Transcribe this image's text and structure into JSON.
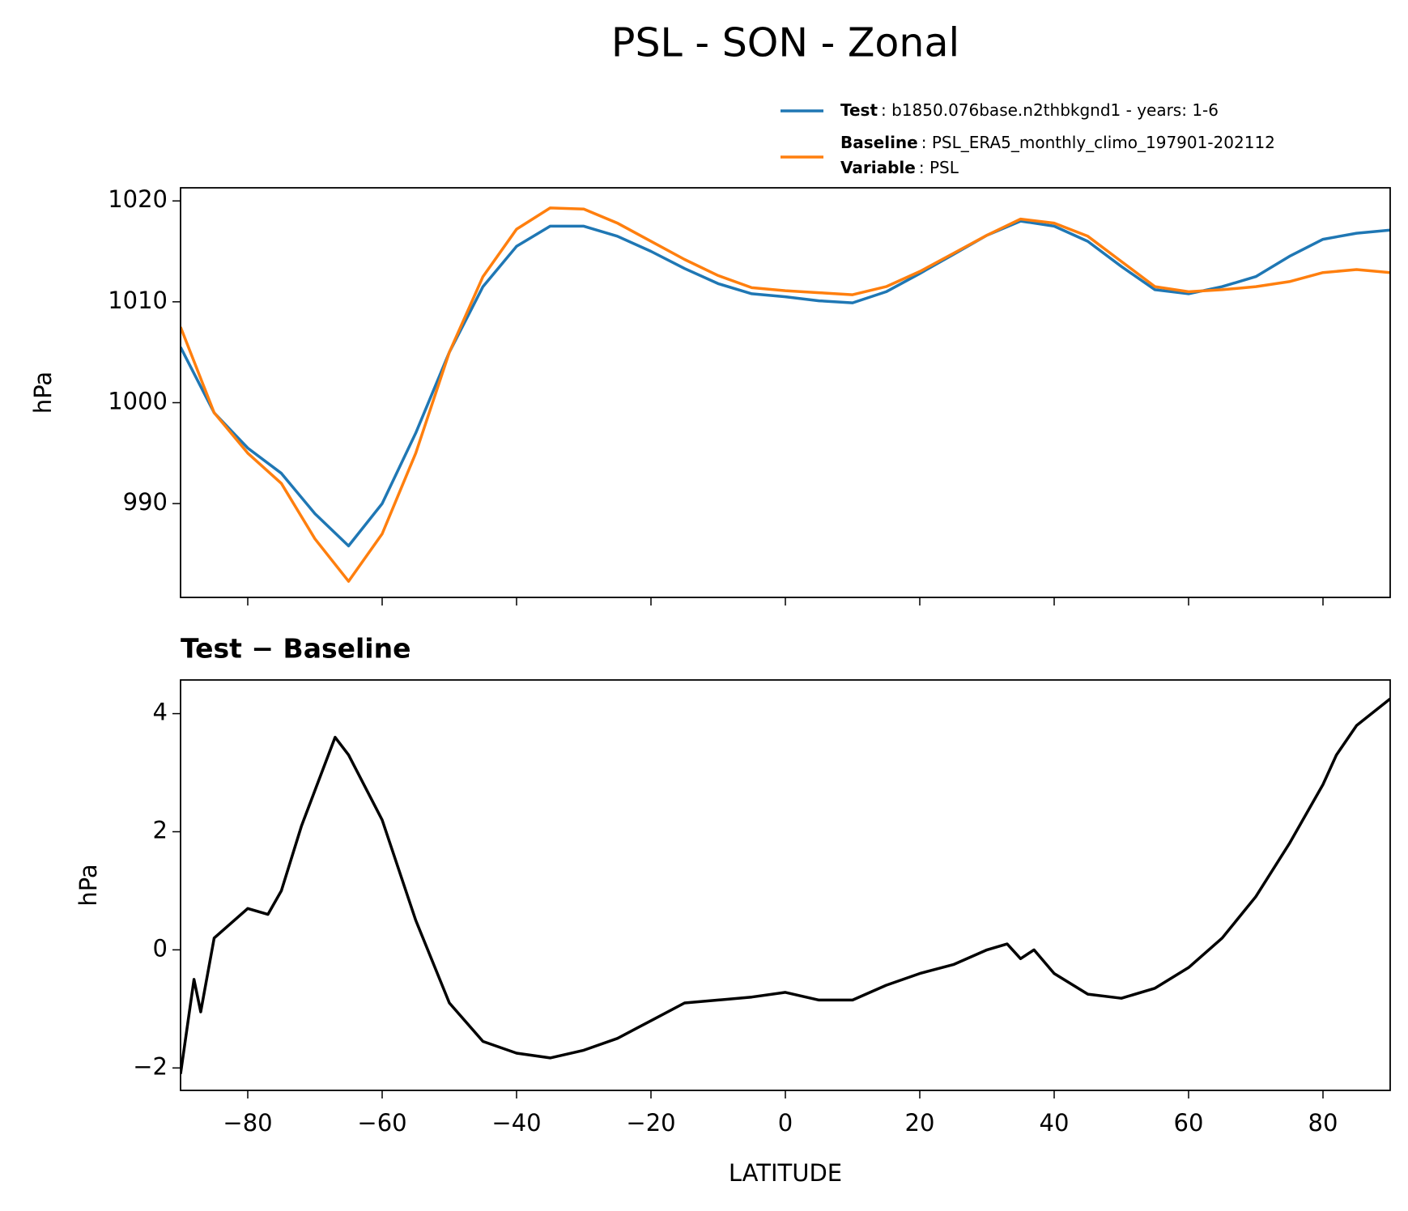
{
  "chart_data": [
    {
      "type": "line",
      "title": "PSL - SON - Zonal",
      "ylabel": "hPa",
      "x": [
        -90,
        -85,
        -80,
        -75,
        -70,
        -65,
        -60,
        -55,
        -50,
        -45,
        -40,
        -35,
        -30,
        -25,
        -20,
        -15,
        -10,
        -5,
        0,
        5,
        10,
        15,
        20,
        25,
        30,
        35,
        40,
        45,
        50,
        55,
        60,
        65,
        70,
        75,
        80,
        85,
        90
      ],
      "series": [
        {
          "name": "Test",
          "description": ": b1850.076base.n2thbkgnd1 - years: 1-6",
          "color": "#1f77b4",
          "values": [
            1005.5,
            999,
            995.5,
            993,
            989,
            985.8,
            990,
            997,
            1005,
            1011.5,
            1015.5,
            1017.5,
            1017.5,
            1016.5,
            1015,
            1013.3,
            1011.8,
            1010.8,
            1010.5,
            1010.1,
            1009.9,
            1011,
            1012.8,
            1014.7,
            1016.6,
            1018,
            1017.5,
            1016,
            1013.5,
            1011.2,
            1010.8,
            1011.5,
            1012.5,
            1014.5,
            1016.2,
            1016.8,
            1017.1
          ]
        },
        {
          "name": "Baseline",
          "description": ": PSL_ERA5_monthly_climo_197901-202112",
          "color": "#ff7f0e",
          "values": [
            1007.5,
            999,
            995,
            992,
            986.5,
            982.3,
            987,
            995,
            1005,
            1012.5,
            1017.2,
            1019.3,
            1019.2,
            1017.8,
            1016,
            1014.2,
            1012.6,
            1011.4,
            1011.1,
            1010.9,
            1010.7,
            1011.5,
            1013,
            1014.8,
            1016.6,
            1018.2,
            1017.8,
            1016.5,
            1014,
            1011.5,
            1011,
            1011.2,
            1011.5,
            1012,
            1012.9,
            1013.2,
            1012.9
          ]
        }
      ],
      "legend_note": {
        "name": "Variable",
        "description": ": PSL"
      },
      "xlim": [
        -90,
        90
      ],
      "xticks": [
        {
          "value": -80,
          "label": "−80"
        },
        {
          "value": -60,
          "label": "−60"
        },
        {
          "value": -40,
          "label": "−40"
        },
        {
          "value": -20,
          "label": "−20"
        },
        0,
        20,
        40,
        60,
        80
      ],
      "show_xtick_labels": false,
      "ylim": [
        980.7,
        1021.3
      ],
      "yticks": [
        990,
        1000,
        1010,
        1020
      ]
    },
    {
      "type": "line",
      "title": "Test − Baseline",
      "ylabel": "hPa",
      "xlabel": "LATITUDE",
      "color": "#000000",
      "x": [
        -90,
        -88,
        -87,
        -85,
        -80,
        -77,
        -75,
        -72,
        -70,
        -67,
        -65,
        -60,
        -55,
        -50,
        -45,
        -40,
        -35,
        -30,
        -25,
        -20,
        -15,
        -10,
        -5,
        0,
        5,
        10,
        15,
        20,
        25,
        30,
        33,
        35,
        37,
        40,
        45,
        50,
        55,
        60,
        65,
        70,
        75,
        80,
        82,
        85,
        90
      ],
      "values": [
        -2.1,
        -0.5,
        -1.05,
        0.2,
        0.7,
        0.6,
        1.0,
        2.1,
        2.7,
        3.6,
        3.3,
        2.2,
        0.5,
        -0.9,
        -1.55,
        -1.75,
        -1.83,
        -1.7,
        -1.5,
        -1.2,
        -0.9,
        -0.85,
        -0.8,
        -0.72,
        -0.85,
        -0.85,
        -0.6,
        -0.4,
        -0.25,
        0.0,
        0.1,
        -0.15,
        0.0,
        -0.4,
        -0.75,
        -0.82,
        -0.65,
        -0.3,
        0.2,
        0.9,
        1.8,
        2.8,
        3.3,
        3.8,
        4.25
      ],
      "xlim": [
        -90,
        90
      ],
      "xticks": [
        {
          "value": -80,
          "label": "−80"
        },
        {
          "value": -60,
          "label": "−60"
        },
        {
          "value": -40,
          "label": "−40"
        },
        {
          "value": -20,
          "label": "−20"
        },
        0,
        20,
        40,
        60,
        80
      ],
      "show_xtick_labels": true,
      "ylim": [
        -2.38,
        4.57
      ],
      "yticks": [
        {
          "value": -2,
          "label": "−2"
        },
        0,
        2,
        4
      ]
    }
  ]
}
